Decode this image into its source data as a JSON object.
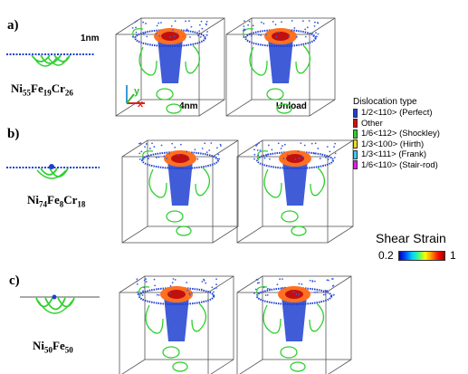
{
  "panels": [
    {
      "label": "a)",
      "composition": {
        "base": "Ni",
        "parts": [
          [
            "Ni",
            "55"
          ],
          [
            "Fe",
            "19"
          ],
          [
            "Cr",
            "26"
          ]
        ]
      }
    },
    {
      "label": "b)",
      "composition": {
        "base": "Ni",
        "parts": [
          [
            "Ni",
            "74"
          ],
          [
            "Fe",
            "8"
          ],
          [
            "Cr",
            "18"
          ]
        ]
      }
    },
    {
      "label": "c)",
      "composition": {
        "base": "Ni",
        "parts": [
          [
            "Ni",
            "50"
          ],
          [
            "Fe",
            "50"
          ]
        ]
      }
    }
  ],
  "annotations": {
    "scale_1nm": "1nm",
    "scale_4nm": "4nm",
    "unload": "Unload",
    "axis_y": "y",
    "axis_x": "x"
  },
  "legend": {
    "title": "Dislocation type",
    "items": [
      {
        "label": "1/2<110> (Perfect)",
        "color": "#1f3fd0"
      },
      {
        "label": "Other",
        "color": "#d01010"
      },
      {
        "label": "1/6<112> (Shockley)",
        "color": "#30d030"
      },
      {
        "label": "1/3<100> (Hirth)",
        "color": "#e8e020"
      },
      {
        "label": "1/3<111> (Frank)",
        "color": "#40c8f0"
      },
      {
        "label": "1/6<110> (Stair-rod)",
        "color": "#e020e0"
      }
    ]
  },
  "colorbar": {
    "title": "Shear Strain",
    "min": "0.2",
    "max": "1"
  }
}
